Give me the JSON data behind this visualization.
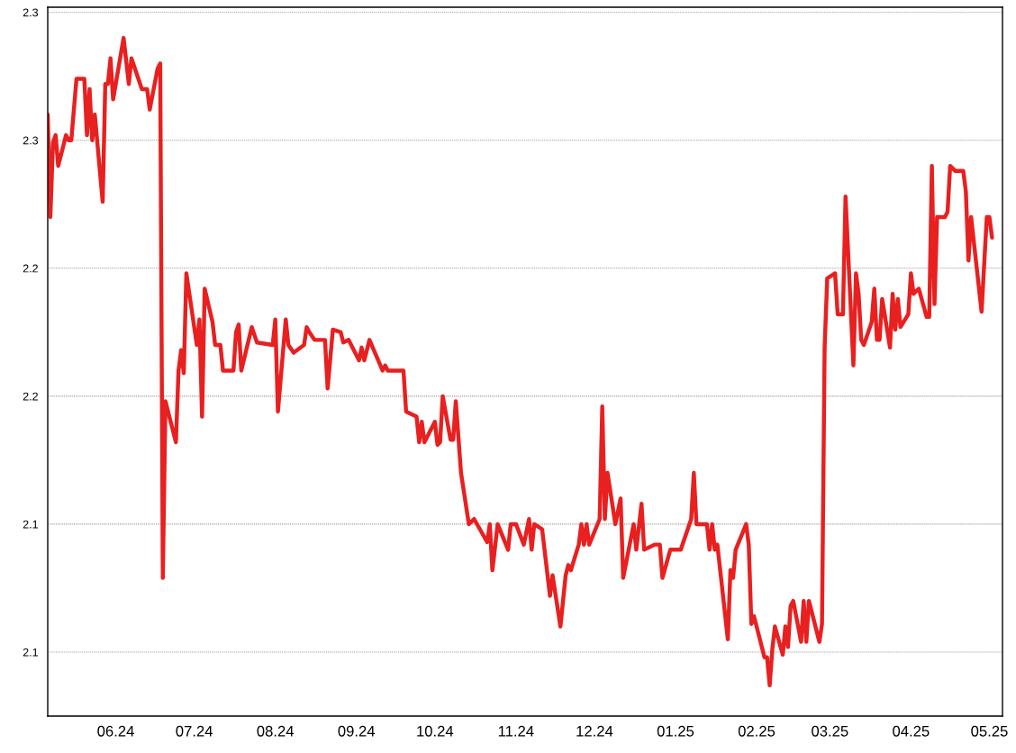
{
  "chart_data": {
    "type": "line",
    "x": [
      "2024-05-06",
      "2024-05-07",
      "2024-05-08",
      "2024-05-09",
      "2024-05-10",
      "2024-05-13",
      "2024-05-14",
      "2024-05-15",
      "2024-05-17",
      "2024-05-20",
      "2024-05-21",
      "2024-05-22",
      "2024-05-23",
      "2024-05-24",
      "2024-05-27",
      "2024-05-28",
      "2024-05-29",
      "2024-05-30",
      "2024-05-31",
      "2024-06-04",
      "2024-06-06",
      "2024-06-07",
      "2024-06-11",
      "2024-06-13",
      "2024-06-14",
      "2024-06-17",
      "2024-06-18",
      "2024-06-19",
      "2024-06-20",
      "2024-06-24",
      "2024-06-25",
      "2024-06-26",
      "2024-06-27",
      "2024-06-28",
      "2024-07-02",
      "2024-07-03",
      "2024-07-04",
      "2024-07-05",
      "2024-07-08",
      "2024-07-09",
      "2024-07-11",
      "2024-07-12",
      "2024-07-16",
      "2024-07-17",
      "2024-07-18",
      "2024-07-19",
      "2024-07-23",
      "2024-07-25",
      "2024-07-31",
      "2024-08-01",
      "2024-08-02",
      "2024-08-05",
      "2024-08-06",
      "2024-08-08",
      "2024-08-12",
      "2024-08-13",
      "2024-08-14",
      "2024-08-16",
      "2024-08-20",
      "2024-08-21",
      "2024-08-23",
      "2024-08-26",
      "2024-08-27",
      "2024-08-29",
      "2024-09-02",
      "2024-09-03",
      "2024-09-04",
      "2024-09-06",
      "2024-09-11",
      "2024-09-12",
      "2024-09-13",
      "2024-09-19",
      "2024-09-20",
      "2024-09-24",
      "2024-09-25",
      "2024-09-26",
      "2024-09-27",
      "2024-10-01",
      "2024-10-02",
      "2024-10-03",
      "2024-10-04",
      "2024-10-07",
      "2024-10-08",
      "2024-10-09",
      "2024-10-11",
      "2024-10-14",
      "2024-10-16",
      "2024-10-21",
      "2024-10-22",
      "2024-10-23",
      "2024-10-25",
      "2024-10-29",
      "2024-10-30",
      "2024-11-01",
      "2024-11-04",
      "2024-11-06",
      "2024-11-07",
      "2024-11-08",
      "2024-11-11",
      "2024-11-14",
      "2024-11-15",
      "2024-11-18",
      "2024-11-20",
      "2024-11-21",
      "2024-11-22",
      "2024-11-25",
      "2024-11-26",
      "2024-11-27",
      "2024-11-28",
      "2024-11-29",
      "2024-12-03",
      "2024-12-04",
      "2024-12-05",
      "2024-12-06",
      "2024-12-09",
      "2024-12-11",
      "2024-12-12",
      "2024-12-16",
      "2024-12-17",
      "2024-12-19",
      "2024-12-20",
      "2024-12-24",
      "2024-12-26",
      "2024-12-27",
      "2024-12-30",
      "2025-01-03",
      "2025-01-07",
      "2025-01-08",
      "2025-01-09",
      "2025-01-13",
      "2025-01-14",
      "2025-01-15",
      "2025-01-16",
      "2025-01-17",
      "2025-01-21",
      "2025-01-22",
      "2025-01-23",
      "2025-01-24",
      "2025-01-28",
      "2025-01-29",
      "2025-01-30",
      "2025-01-31",
      "2025-02-04",
      "2025-02-05",
      "2025-02-06",
      "2025-02-07",
      "2025-02-08",
      "2025-02-11",
      "2025-02-12",
      "2025-02-13",
      "2025-02-14",
      "2025-02-15",
      "2025-02-18",
      "2025-02-19",
      "2025-02-20",
      "2025-02-21",
      "2025-02-25",
      "2025-02-26",
      "2025-02-27",
      "2025-02-28",
      "2025-03-03",
      "2025-03-04",
      "2025-03-06",
      "2025-03-07",
      "2025-03-10",
      "2025-03-11",
      "2025-03-12",
      "2025-03-13",
      "2025-03-14",
      "2025-03-17",
      "2025-03-18",
      "2025-03-19",
      "2025-03-20",
      "2025-03-21",
      "2025-03-24",
      "2025-03-25",
      "2025-03-26",
      "2025-03-27",
      "2025-03-28",
      "2025-03-31",
      "2025-04-01",
      "2025-04-02",
      "2025-04-04",
      "2025-04-07",
      "2025-04-08",
      "2025-04-09",
      "2025-04-10",
      "2025-04-11",
      "2025-04-14",
      "2025-04-15",
      "2025-04-16",
      "2025-04-18",
      "2025-04-21",
      "2025-04-22",
      "2025-04-23",
      "2025-04-24",
      "2025-04-28",
      "2025-04-30",
      "2025-05-01",
      "2025-05-02"
    ],
    "series": [
      {
        "color": "#e82020",
        "values": [
          2.26,
          2.22,
          2.249,
          2.252,
          2.24,
          2.252,
          2.25,
          2.25,
          2.274,
          2.274,
          2.252,
          2.27,
          2.25,
          2.26,
          2.226,
          2.272,
          2.272,
          2.282,
          2.266,
          2.29,
          2.272,
          2.282,
          2.27,
          2.27,
          2.262,
          2.278,
          2.28,
          2.079,
          2.148,
          2.132,
          2.16,
          2.168,
          2.159,
          2.198,
          2.17,
          2.18,
          2.142,
          2.192,
          2.179,
          2.17,
          2.17,
          2.16,
          2.16,
          2.175,
          2.178,
          2.16,
          2.177,
          2.171,
          2.17,
          2.18,
          2.144,
          2.18,
          2.17,
          2.167,
          2.17,
          2.177,
          2.175,
          2.172,
          2.172,
          2.153,
          2.176,
          2.175,
          2.171,
          2.172,
          2.164,
          2.169,
          2.164,
          2.172,
          2.16,
          2.162,
          2.16,
          2.16,
          2.144,
          2.142,
          2.132,
          2.14,
          2.132,
          2.14,
          2.131,
          2.132,
          2.15,
          2.133,
          2.133,
          2.148,
          2.12,
          2.1,
          2.102,
          2.093,
          2.1,
          2.082,
          2.1,
          2.09,
          2.1,
          2.1,
          2.092,
          2.102,
          2.09,
          2.1,
          2.098,
          2.072,
          2.08,
          2.06,
          2.08,
          2.084,
          2.082,
          2.092,
          2.1,
          2.092,
          2.1,
          2.092,
          2.102,
          2.146,
          2.102,
          2.12,
          2.1,
          2.11,
          2.079,
          2.1,
          2.09,
          2.108,
          2.09,
          2.092,
          2.092,
          2.079,
          2.09,
          2.09,
          2.102,
          2.12,
          2.1,
          2.1,
          2.09,
          2.1,
          2.09,
          2.092,
          2.055,
          2.082,
          2.079,
          2.09,
          2.1,
          2.092,
          2.061,
          2.064,
          2.048,
          2.048,
          2.037,
          2.051,
          2.06,
          2.049,
          2.06,
          2.052,
          2.068,
          2.07,
          2.054,
          2.07,
          2.054,
          2.07,
          2.054,
          2.061,
          2.169,
          2.196,
          2.198,
          2.182,
          2.182,
          2.228,
          2.162,
          2.198,
          2.19,
          2.172,
          2.17,
          2.179,
          2.192,
          2.172,
          2.172,
          2.188,
          2.169,
          2.19,
          2.176,
          2.188,
          2.177,
          2.182,
          2.198,
          2.19,
          2.192,
          2.181,
          2.181,
          2.24,
          2.186,
          2.22,
          2.22,
          2.222,
          2.24,
          2.238,
          2.238,
          2.23,
          2.203,
          2.22,
          2.183,
          2.22,
          2.22,
          2.212
        ]
      }
    ],
    "xlim": [
      "2024-05-06",
      "2025-05-06"
    ],
    "xticks": [
      {
        "value": "2024-06-01",
        "label": "06.24"
      },
      {
        "value": "2024-07-01",
        "label": "07.24"
      },
      {
        "value": "2024-08-01",
        "label": "08.24"
      },
      {
        "value": "2024-09-01",
        "label": "09.24"
      },
      {
        "value": "2024-10-01",
        "label": "10.24"
      },
      {
        "value": "2024-11-01",
        "label": "11.24"
      },
      {
        "value": "2024-12-01",
        "label": "12.24"
      },
      {
        "value": "2025-01-01",
        "label": "01.25"
      },
      {
        "value": "2025-02-01",
        "label": "02.25"
      },
      {
        "value": "2025-03-01",
        "label": "03.25"
      },
      {
        "value": "2025-04-01",
        "label": "04.25"
      },
      {
        "value": "2025-05-01",
        "label": "05.25"
      }
    ],
    "ylim": [
      2.025,
      2.302
    ],
    "yticks": [
      {
        "value": 2.05,
        "label": "2.1"
      },
      2.1,
      {
        "value": 2.15,
        "label": "2.2"
      },
      2.2,
      {
        "value": 2.25,
        "label": "2.3"
      },
      2.3
    ],
    "grid": "y",
    "line_style": "solid",
    "marker": "none"
  }
}
